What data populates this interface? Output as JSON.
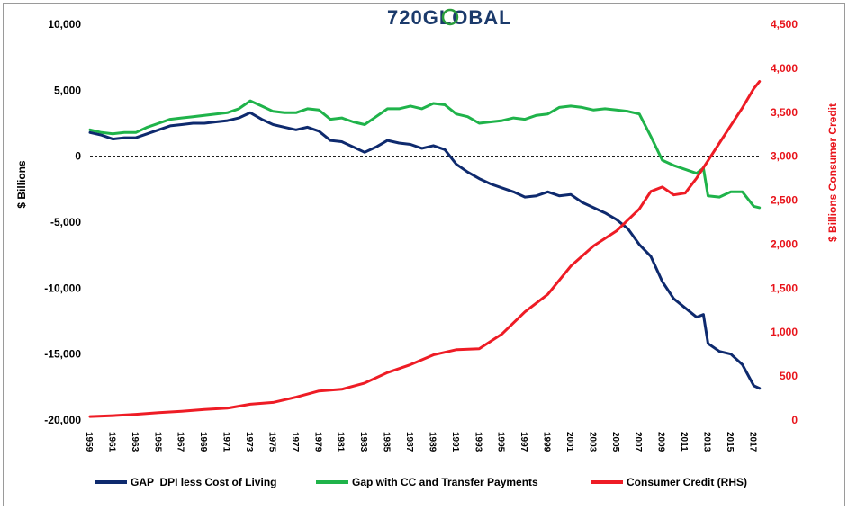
{
  "chart_data": {
    "type": "line",
    "logo": "720GLOBAL",
    "ylabel_left": "$ Billions",
    "ylabel_right": "$ Billions Consumer Credit",
    "y_left_ticks": [
      "10,000",
      "5,000",
      "0",
      "-5,000",
      "-10,000",
      "-15,000",
      "-20,000"
    ],
    "y_left_range": [
      -20000,
      10000
    ],
    "y_right_ticks": [
      "4,500",
      "4,000",
      "3,500",
      "3,000",
      "2,500",
      "2,000",
      "1,500",
      "1,000",
      "500",
      "0"
    ],
    "y_right_range": [
      0,
      4500
    ],
    "x_ticks": [
      "1959",
      "1961",
      "1963",
      "1965",
      "1967",
      "1969",
      "1971",
      "1973",
      "1975",
      "1977",
      "1979",
      "1981",
      "1983",
      "1985",
      "1987",
      "1989",
      "1991",
      "1993",
      "1995",
      "1997",
      "1999",
      "2001",
      "2003",
      "2005",
      "2007",
      "2009",
      "2011",
      "2013",
      "2015",
      "2017"
    ],
    "x_range": [
      1959,
      2017.6
    ],
    "series": [
      {
        "name": "GAP  DPI less Cost of Living",
        "axis": "left",
        "color": "#0e2a6e",
        "points": [
          [
            1959,
            1800
          ],
          [
            1960,
            1600
          ],
          [
            1961,
            1300
          ],
          [
            1962,
            1400
          ],
          [
            1963,
            1400
          ],
          [
            1964,
            1700
          ],
          [
            1965,
            2000
          ],
          [
            1966,
            2300
          ],
          [
            1967,
            2400
          ],
          [
            1968,
            2500
          ],
          [
            1969,
            2500
          ],
          [
            1970,
            2600
          ],
          [
            1971,
            2700
          ],
          [
            1972,
            2900
          ],
          [
            1973,
            3300
          ],
          [
            1974,
            2800
          ],
          [
            1975,
            2400
          ],
          [
            1976,
            2200
          ],
          [
            1977,
            2000
          ],
          [
            1978,
            2200
          ],
          [
            1979,
            1900
          ],
          [
            1980,
            1200
          ],
          [
            1981,
            1100
          ],
          [
            1982,
            700
          ],
          [
            1983,
            300
          ],
          [
            1984,
            700
          ],
          [
            1985,
            1200
          ],
          [
            1986,
            1000
          ],
          [
            1987,
            900
          ],
          [
            1988,
            600
          ],
          [
            1989,
            800
          ],
          [
            1990,
            500
          ],
          [
            1991,
            -600
          ],
          [
            1992,
            -1200
          ],
          [
            1993,
            -1700
          ],
          [
            1994,
            -2100
          ],
          [
            1995,
            -2400
          ],
          [
            1996,
            -2700
          ],
          [
            1997,
            -3100
          ],
          [
            1998,
            -3000
          ],
          [
            1999,
            -2700
          ],
          [
            2000,
            -3000
          ],
          [
            2001,
            -2900
          ],
          [
            2002,
            -3500
          ],
          [
            2003,
            -3900
          ],
          [
            2004,
            -4300
          ],
          [
            2005,
            -4800
          ],
          [
            2006,
            -5500
          ],
          [
            2007,
            -6700
          ],
          [
            2008,
            -7600
          ],
          [
            2009,
            -9500
          ],
          [
            2010,
            -10800
          ],
          [
            2011,
            -11500
          ],
          [
            2012,
            -12200
          ],
          [
            2012.6,
            -12000
          ],
          [
            2013,
            -14200
          ],
          [
            2014,
            -14800
          ],
          [
            2015,
            -15000
          ],
          [
            2016,
            -15800
          ],
          [
            2017,
            -17400
          ],
          [
            2017.5,
            -17600
          ]
        ]
      },
      {
        "name": "Gap with CC and Transfer Payments",
        "axis": "left",
        "color": "#1fb34a",
        "points": [
          [
            1959,
            2000
          ],
          [
            1960,
            1800
          ],
          [
            1961,
            1700
          ],
          [
            1962,
            1800
          ],
          [
            1963,
            1800
          ],
          [
            1964,
            2200
          ],
          [
            1965,
            2500
          ],
          [
            1966,
            2800
          ],
          [
            1967,
            2900
          ],
          [
            1968,
            3000
          ],
          [
            1969,
            3100
          ],
          [
            1970,
            3200
          ],
          [
            1971,
            3300
          ],
          [
            1972,
            3600
          ],
          [
            1973,
            4200
          ],
          [
            1974,
            3800
          ],
          [
            1975,
            3400
          ],
          [
            1976,
            3300
          ],
          [
            1977,
            3300
          ],
          [
            1978,
            3600
          ],
          [
            1979,
            3500
          ],
          [
            1980,
            2800
          ],
          [
            1981,
            2900
          ],
          [
            1982,
            2600
          ],
          [
            1983,
            2400
          ],
          [
            1984,
            3000
          ],
          [
            1985,
            3600
          ],
          [
            1986,
            3600
          ],
          [
            1987,
            3800
          ],
          [
            1988,
            3600
          ],
          [
            1989,
            4000
          ],
          [
            1990,
            3900
          ],
          [
            1991,
            3200
          ],
          [
            1992,
            3000
          ],
          [
            1993,
            2500
          ],
          [
            1994,
            2600
          ],
          [
            1995,
            2700
          ],
          [
            1996,
            2900
          ],
          [
            1997,
            2800
          ],
          [
            1998,
            3100
          ],
          [
            1999,
            3200
          ],
          [
            2000,
            3700
          ],
          [
            2001,
            3800
          ],
          [
            2002,
            3700
          ],
          [
            2003,
            3500
          ],
          [
            2004,
            3600
          ],
          [
            2005,
            3500
          ],
          [
            2006,
            3400
          ],
          [
            2007,
            3200
          ],
          [
            2008,
            1500
          ],
          [
            2009,
            -300
          ],
          [
            2010,
            -700
          ],
          [
            2011,
            -1000
          ],
          [
            2012,
            -1300
          ],
          [
            2012.6,
            -900
          ],
          [
            2013,
            -3000
          ],
          [
            2014,
            -3100
          ],
          [
            2015,
            -2700
          ],
          [
            2016,
            -2700
          ],
          [
            2017,
            -3800
          ],
          [
            2017.5,
            -3900
          ]
        ]
      },
      {
        "name": "Consumer Credit (RHS)",
        "axis": "right",
        "color": "#ee1c25",
        "points": [
          [
            1959,
            40
          ],
          [
            1961,
            50
          ],
          [
            1963,
            65
          ],
          [
            1965,
            85
          ],
          [
            1967,
            100
          ],
          [
            1969,
            120
          ],
          [
            1971,
            135
          ],
          [
            1973,
            180
          ],
          [
            1975,
            200
          ],
          [
            1977,
            260
          ],
          [
            1979,
            330
          ],
          [
            1981,
            350
          ],
          [
            1983,
            420
          ],
          [
            1985,
            540
          ],
          [
            1987,
            630
          ],
          [
            1989,
            740
          ],
          [
            1991,
            800
          ],
          [
            1993,
            810
          ],
          [
            1995,
            980
          ],
          [
            1997,
            1230
          ],
          [
            1999,
            1430
          ],
          [
            2001,
            1750
          ],
          [
            2003,
            1980
          ],
          [
            2005,
            2150
          ],
          [
            2007,
            2400
          ],
          [
            2008,
            2600
          ],
          [
            2009,
            2650
          ],
          [
            2010,
            2560
          ],
          [
            2011,
            2580
          ],
          [
            2012,
            2750
          ],
          [
            2013,
            2950
          ],
          [
            2014,
            3150
          ],
          [
            2015,
            3350
          ],
          [
            2016,
            3550
          ],
          [
            2017,
            3770
          ],
          [
            2017.5,
            3850
          ]
        ]
      }
    ]
  }
}
